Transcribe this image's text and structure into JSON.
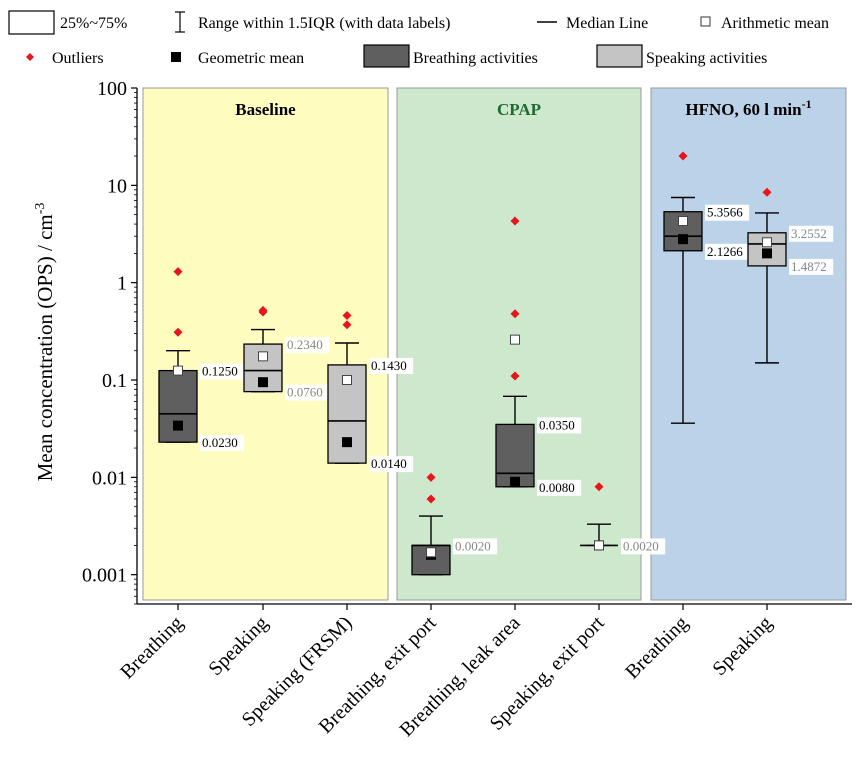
{
  "chart_data": {
    "type": "box",
    "y_scale": "log",
    "ylim": [
      0.0005,
      100
    ],
    "ylabel": "Mean concentration (OPS) / cm",
    "ylabel_sup": "-3",
    "y_ticks": [
      {
        "value": 100,
        "label": "100"
      },
      {
        "value": 10,
        "label": "10"
      },
      {
        "value": 1,
        "label": "1"
      },
      {
        "value": 0.1,
        "label": "0.1"
      },
      {
        "value": 0.01,
        "label": "0.01"
      },
      {
        "value": 0.001,
        "label": "0.001"
      }
    ],
    "legend": {
      "box": "25%~75%",
      "range": "Range within 1.5IQR (with data labels)",
      "median": "Median Line",
      "mean": "Arithmetic mean",
      "outliers": "Outliers",
      "geo_mean": "Geometric mean",
      "breathing": "Breathing activities",
      "speaking": "Speaking activities"
    },
    "colors": {
      "breathing": "#5f5f5f",
      "speaking": "#c4c4c4",
      "outlier": "#e8151b",
      "panel_baseline": "#fffcc0",
      "panel_cpap": "#cde8cc",
      "panel_hfno": "#bcd2e8",
      "title_baseline": "#000000",
      "title_cpap": "#1e6a33",
      "title_hfno": "#000000"
    },
    "panels": [
      {
        "title": "Baseline",
        "title_sup": "",
        "from": 0,
        "to": 2,
        "color": "#fffcc0",
        "title_color": "#000000"
      },
      {
        "title": "CPAP",
        "title_sup": "",
        "from": 3,
        "to": 5,
        "color": "#cde8cc",
        "title_color": "#1e6a33"
      },
      {
        "title": "HFNO, 60 l min",
        "title_sup": "-1",
        "from": 6,
        "to": 7,
        "color": "#bcd2e8",
        "title_color": "#000000"
      }
    ],
    "categories": [
      "Breathing",
      "Speaking",
      "Speaking (FRSM)",
      "Breathing, exit port",
      "Breathing, leak area",
      "Speaking, exit port",
      "Breathing",
      "Speaking"
    ],
    "boxes": [
      {
        "activity": "breathing",
        "q1": 0.023,
        "q3": 0.125,
        "median": 0.045,
        "whisker_low": 0.023,
        "whisker_high": 0.2,
        "mean": 0.125,
        "geo_mean": 0.034,
        "outliers": [
          0.31,
          1.3
        ],
        "labels": [
          {
            "text": "0.1250",
            "value": 0.125,
            "color": "#000000"
          },
          {
            "text": "0.0230",
            "value": 0.023,
            "color": "#000000"
          }
        ]
      },
      {
        "activity": "speaking",
        "q1": 0.076,
        "q3": 0.234,
        "median": 0.125,
        "whisker_low": 0.076,
        "whisker_high": 0.33,
        "mean": 0.175,
        "geo_mean": 0.095,
        "outliers": [
          0.5,
          0.52
        ],
        "labels": [
          {
            "text": "0.2340",
            "value": 0.234,
            "color": "#888888"
          },
          {
            "text": "0.0760",
            "value": 0.076,
            "color": "#888888"
          }
        ]
      },
      {
        "activity": "speaking",
        "q1": 0.014,
        "q3": 0.143,
        "median": 0.038,
        "whisker_low": 0.014,
        "whisker_high": 0.24,
        "mean": 0.1,
        "geo_mean": 0.023,
        "outliers": [
          0.37,
          0.46
        ],
        "labels": [
          {
            "text": "0.1430",
            "value": 0.143,
            "color": "#000000"
          },
          {
            "text": "0.0140",
            "value": 0.014,
            "color": "#000000"
          }
        ]
      },
      {
        "activity": "breathing",
        "q1": 0.001,
        "q3": 0.002,
        "median": 0.002,
        "whisker_low": 0.001,
        "whisker_high": 0.004,
        "mean": 0.0017,
        "geo_mean": 0.0016,
        "outliers": [
          0.006,
          0.01
        ],
        "labels": [
          {
            "text": "0.0020",
            "value": 0.002,
            "color": "#888888"
          }
        ]
      },
      {
        "activity": "breathing",
        "q1": 0.008,
        "q3": 0.035,
        "median": 0.011,
        "whisker_low": 0.008,
        "whisker_high": 0.068,
        "mean": 0.26,
        "geo_mean": 0.009,
        "outliers": [
          0.11,
          0.48,
          4.3
        ],
        "labels": [
          {
            "text": "0.0350",
            "value": 0.035,
            "color": "#000000"
          },
          {
            "text": "0.0080",
            "value": 0.008,
            "color": "#000000"
          }
        ]
      },
      {
        "activity": "speaking",
        "q1": 0.002,
        "q3": 0.002,
        "median": 0.002,
        "whisker_low": 0.002,
        "whisker_high": 0.0033,
        "mean": 0.002,
        "geo_mean": 0.002,
        "outliers": [
          0.008
        ],
        "labels": [
          {
            "text": "0.0020",
            "value": 0.002,
            "color": "#888888"
          }
        ]
      },
      {
        "activity": "breathing",
        "q1": 2.1266,
        "q3": 5.3566,
        "median": 3.0,
        "whisker_low": 0.036,
        "whisker_high": 7.5,
        "mean": 4.3,
        "geo_mean": 2.8,
        "outliers": [
          20
        ],
        "labels": [
          {
            "text": "5.3566",
            "value": 5.3566,
            "color": "#000000"
          },
          {
            "text": "2.1266",
            "value": 2.1266,
            "color": "#000000"
          }
        ]
      },
      {
        "activity": "speaking",
        "q1": 1.4872,
        "q3": 3.2552,
        "median": 2.5,
        "whisker_low": 0.15,
        "whisker_high": 5.2,
        "mean": 2.6,
        "geo_mean": 2.0,
        "outliers": [
          8.5
        ],
        "labels": [
          {
            "text": "3.2552",
            "value": 3.2552,
            "color": "#888888"
          },
          {
            "text": "1.4872",
            "value": 1.4872,
            "color": "#888888"
          }
        ]
      }
    ]
  }
}
